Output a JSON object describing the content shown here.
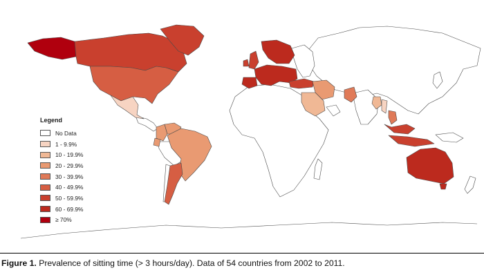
{
  "legend": {
    "title": "Legend",
    "items": [
      {
        "label": "No Data",
        "color": "#ffffff"
      },
      {
        "label": "1 - 9.9%",
        "color": "#f7d4c2"
      },
      {
        "label": "10 - 19.9%",
        "color": "#f0b895"
      },
      {
        "label": "20 - 29.9%",
        "color": "#e99a72"
      },
      {
        "label": "30 - 39.9%",
        "color": "#e07a58"
      },
      {
        "label": "40 - 49.9%",
        "color": "#d65e43"
      },
      {
        "label": "50 - 59.9%",
        "color": "#c9402e"
      },
      {
        "label": "60 - 69.9%",
        "color": "#bc2a1e"
      },
      {
        "label": "≥ 70%",
        "color": "#b0000e"
      }
    ]
  },
  "countries": [
    {
      "name": "Alaska (USA)",
      "bin": 8
    },
    {
      "name": "Canada",
      "bin": 6
    },
    {
      "name": "USA",
      "bin": 5
    },
    {
      "name": "Greenland",
      "bin": 6
    },
    {
      "name": "Mexico",
      "bin": 1
    },
    {
      "name": "Colombia",
      "bin": 3
    },
    {
      "name": "Venezuela",
      "bin": 3
    },
    {
      "name": "Ecuador",
      "bin": 3
    },
    {
      "name": "Brazil",
      "bin": 3
    },
    {
      "name": "Argentina",
      "bin": 5
    },
    {
      "name": "Scandinavia",
      "bin": 7
    },
    {
      "name": "Ireland",
      "bin": 6
    },
    {
      "name": "United Kingdom",
      "bin": 6
    },
    {
      "name": "Western Europe",
      "bin": 7
    },
    {
      "name": "Iberia",
      "bin": 7
    },
    {
      "name": "Turkey",
      "bin": 6
    },
    {
      "name": "Iran",
      "bin": 3
    },
    {
      "name": "Saudi Arabia",
      "bin": 2
    },
    {
      "name": "Pakistan",
      "bin": 4
    },
    {
      "name": "Bangladesh",
      "bin": 2
    },
    {
      "name": "Myanmar",
      "bin": 1
    },
    {
      "name": "Vietnam",
      "bin": 4
    },
    {
      "name": "Malaysia",
      "bin": 6
    },
    {
      "name": "Indonesia",
      "bin": 6
    },
    {
      "name": "Australia",
      "bin": 7
    },
    {
      "name": "Tasmania",
      "bin": 7
    }
  ],
  "caption": {
    "label": "Figure 1.",
    "text": "Prevalence of sitting time (> 3 hours/day). Data of 54 countries from 2002 to 2011."
  }
}
